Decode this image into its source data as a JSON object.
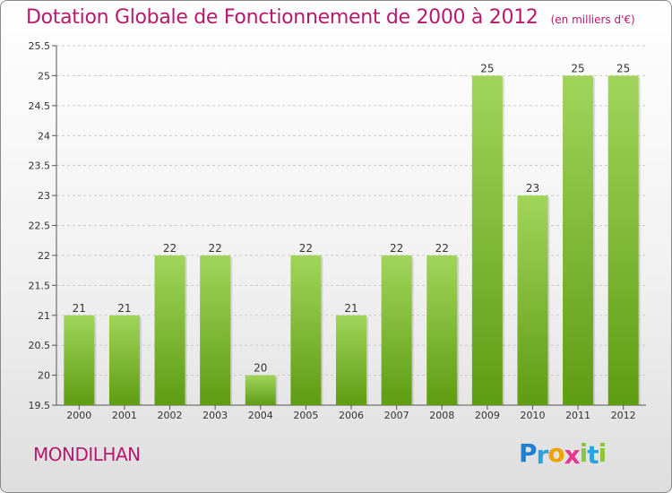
{
  "title": "Dotation Globale de Fonctionnement de 2000 à 2012",
  "unit": "(en milliers d'€)",
  "commune": "MONDILHAN",
  "logo": {
    "letters": [
      {
        "ch": "P",
        "color": "#1f7fd1"
      },
      {
        "ch": "r",
        "color": "#2aa3dd"
      },
      {
        "ch": "o",
        "color": "#f0a000"
      },
      {
        "ch": "x",
        "color": "#e23a8c"
      },
      {
        "ch": "i",
        "color": "#8cc63f"
      },
      {
        "ch": "t",
        "color": "#2aa3dd"
      },
      {
        "ch": "i",
        "color": "#8cc63f"
      }
    ]
  },
  "colors": {
    "title": "#b6196e",
    "bar_top": "#a1d55a",
    "bar_bottom": "#5e9c12",
    "grid": "#c8c8c8"
  },
  "chart_data": {
    "type": "bar",
    "categories": [
      "2000",
      "2001",
      "2002",
      "2003",
      "2004",
      "2005",
      "2006",
      "2007",
      "2008",
      "2009",
      "2010",
      "2011",
      "2012"
    ],
    "values": [
      21,
      21,
      22,
      22,
      20,
      22,
      21,
      22,
      22,
      25,
      23,
      25,
      25
    ],
    "data_labels": [
      "21",
      "21",
      "22",
      "22",
      "20",
      "22",
      "21",
      "22",
      "22",
      "25",
      "23",
      "25",
      "25"
    ],
    "yticks": [
      "19.5",
      "20",
      "20.5",
      "21",
      "21.5",
      "22",
      "22.5",
      "23",
      "23.5",
      "24",
      "24.5",
      "25",
      "25.5"
    ],
    "ylim": [
      19.5,
      25.5
    ],
    "grid": true,
    "legend": false
  }
}
